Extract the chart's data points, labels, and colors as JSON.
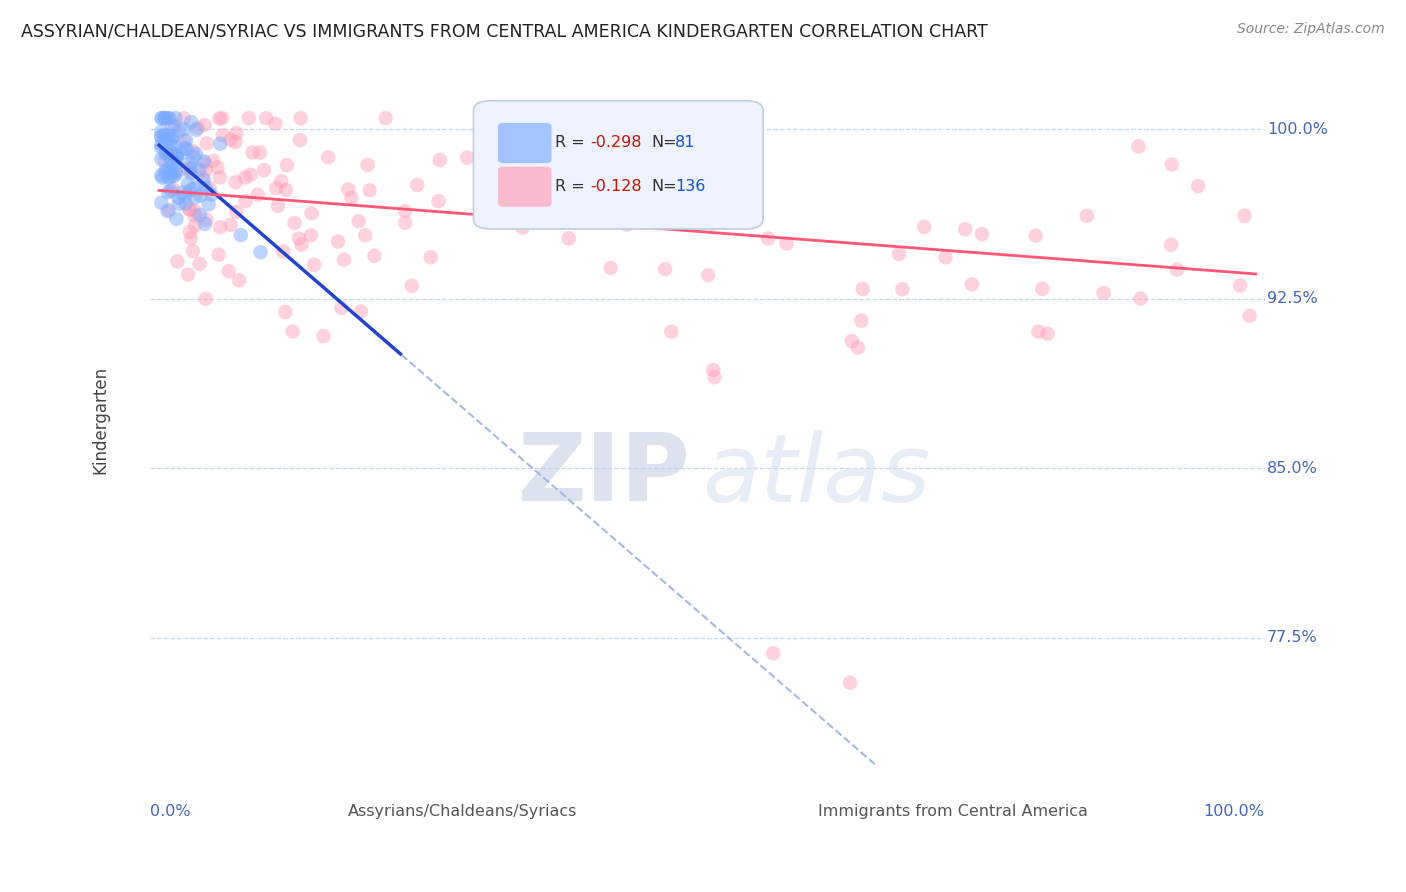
{
  "title": "ASSYRIAN/CHALDEAN/SYRIAC VS IMMIGRANTS FROM CENTRAL AMERICA KINDERGARTEN CORRELATION CHART",
  "source_text": "Source: ZipAtlas.com",
  "ylabel": "Kindergarten",
  "blue_color": "#7aaaff",
  "pink_color": "#ff9bb5",
  "blue_line_color": "#2244cc",
  "pink_line_color": "#ff5577",
  "blue_dash_color": "#99aadd",
  "watermark_zip": "ZIP",
  "watermark_atlas": "atlas",
  "legend_label_blue": "R = -0.298",
  "legend_label_pink": "R = -0.128",
  "legend_N_blue": "N=  81",
  "legend_N_pink": "N= 136",
  "ymin": 0.718,
  "ymax": 1.025,
  "xmin": -0.008,
  "xmax": 1.008,
  "ytick_positions": [
    0.775,
    0.85,
    0.925,
    1.0
  ],
  "ytick_labels": [
    "77.5%",
    "85.0%",
    "92.5%",
    "100.0%"
  ],
  "grid_color": "#bbccee",
  "title_color": "#222222",
  "axis_label_color": "#4466bb",
  "ylabel_color": "#444444",
  "source_color": "#888888"
}
